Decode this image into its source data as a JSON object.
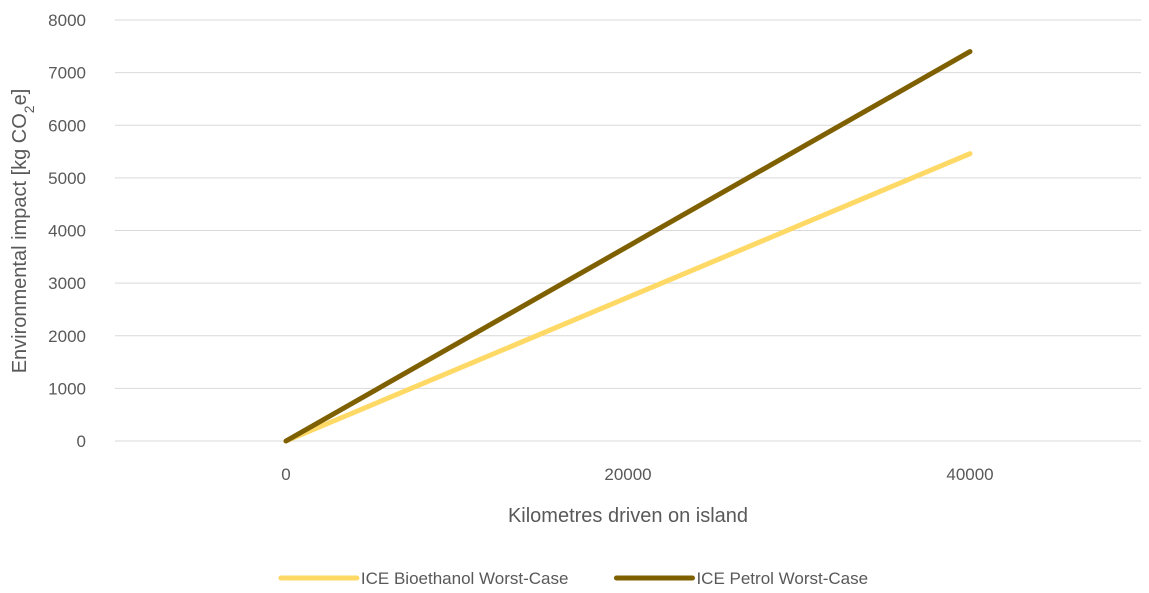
{
  "chart_data": {
    "type": "line",
    "title": "",
    "xlabel": "Kilometres driven on island",
    "ylabel": {
      "prefix": "Environmental impact  [kg CO",
      "subscript": "2",
      "suffix": "e]"
    },
    "xlim": [
      -10000,
      50000
    ],
    "ylim": [
      0,
      8000
    ],
    "x_ticks": [
      0,
      20000,
      40000
    ],
    "y_ticks": [
      0,
      1000,
      2000,
      3000,
      4000,
      5000,
      6000,
      7000,
      8000
    ],
    "grid": "horizontal",
    "legend_position": "bottom",
    "series": [
      {
        "name": "ICE Bioethanol Worst-Case",
        "color": "#FFD966",
        "x": [
          0,
          40000
        ],
        "y": [
          0,
          5460
        ]
      },
      {
        "name": "ICE Petrol Worst-Case",
        "color": "#7F6000",
        "x": [
          0,
          40000
        ],
        "y": [
          0,
          7400
        ]
      }
    ]
  }
}
